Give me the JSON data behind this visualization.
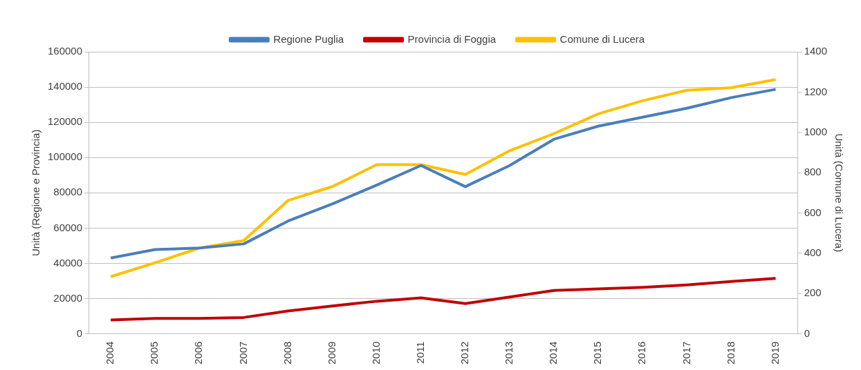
{
  "chart_data": {
    "type": "line",
    "ylabel": "Unità (Regione e Provincia)",
    "y2label": "Unità (Comune di Lucera)",
    "categories": [
      "2004",
      "2005",
      "2006",
      "2007",
      "2008",
      "2009",
      "2010",
      "2011",
      "2012",
      "2013",
      "2014",
      "2015",
      "2016",
      "2017",
      "2018",
      "2019"
    ],
    "series": [
      {
        "name": "Regione Puglia",
        "color": "#4a7ebb",
        "values": [
          43000,
          47800,
          48700,
          51000,
          64000,
          73700,
          84400,
          95500,
          83500,
          95500,
          110400,
          117800,
          122900,
          128000,
          134000,
          138700
        ]
      },
      {
        "name": "Provincia di Foggia",
        "color": "#c00000",
        "values": [
          7900,
          8800,
          8800,
          9300,
          13000,
          15800,
          18500,
          20400,
          17200,
          20900,
          24600,
          25500,
          26400,
          27800,
          29700,
          31500
        ]
      },
      {
        "name": "Comune di Lucera",
        "color": "#ffc000",
        "axis": "y2",
        "values": [
          284,
          353,
          426,
          463,
          662,
          731,
          840,
          840,
          791,
          909,
          994,
          1092,
          1157,
          1209,
          1222,
          1262
        ]
      }
    ],
    "ylim": [
      0,
      160000
    ],
    "yticks": [
      0,
      20000,
      40000,
      60000,
      80000,
      100000,
      120000,
      140000,
      160000
    ],
    "y2lim": [
      0,
      1400
    ],
    "y2ticks": [
      0,
      200,
      400,
      600,
      800,
      1000,
      1200,
      1400
    ],
    "grid": "y",
    "legend": "top",
    "marker": "none",
    "line_style": "solid"
  }
}
